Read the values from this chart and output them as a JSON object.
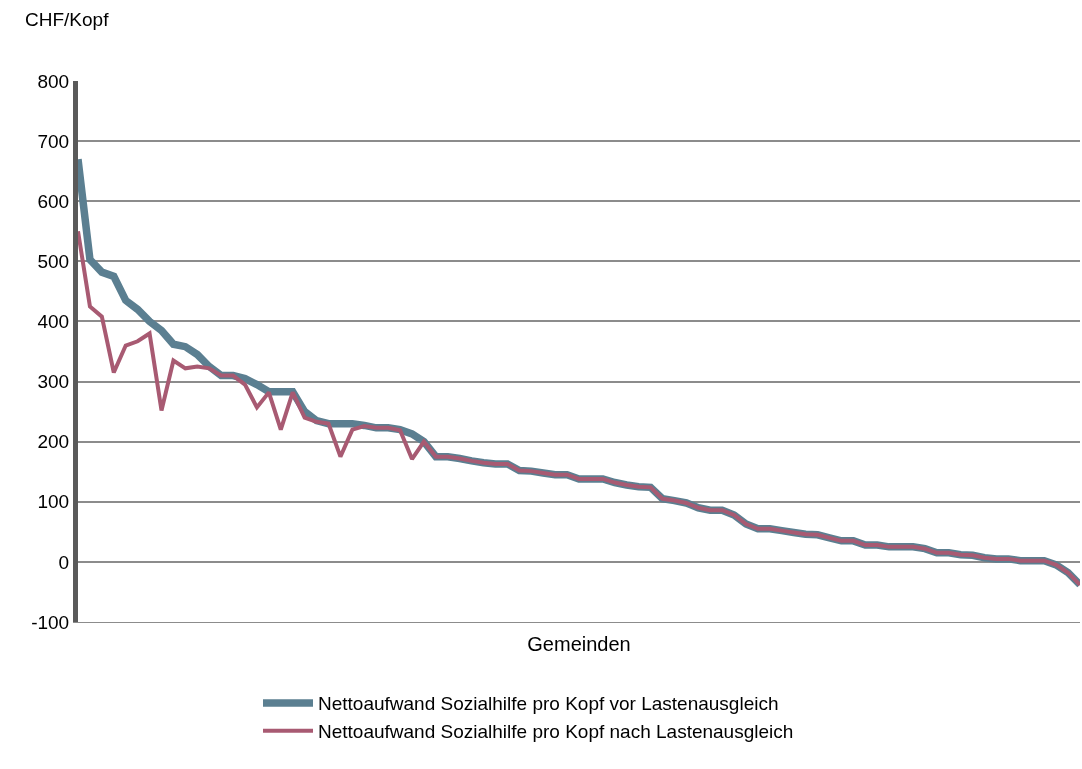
{
  "chart_data": {
    "type": "line",
    "xlabel": "Gemeinden",
    "ylabel": "CHF/Kopf",
    "categories": [
      null,
      null,
      null,
      null,
      null,
      null,
      null,
      null,
      null,
      null,
      null,
      null,
      null,
      null,
      null,
      null,
      null,
      null,
      null,
      null,
      null,
      null,
      null,
      null,
      null,
      null,
      null,
      null,
      null,
      null,
      null,
      null,
      null,
      null,
      null,
      null,
      null,
      null,
      null,
      null,
      null,
      null,
      null,
      null,
      null,
      null,
      null,
      null,
      null,
      null,
      null,
      null,
      null,
      null,
      null,
      null,
      null,
      null,
      null,
      null,
      null,
      null,
      null,
      null,
      null,
      null,
      null,
      null,
      null,
      null,
      null,
      null,
      null,
      null,
      null,
      null,
      null,
      null,
      null,
      null,
      null,
      null,
      null,
      null,
      null
    ],
    "series": [
      {
        "name": "Nettoaufwand Sozialhilfe pro Kopf vor Lastenausgleich",
        "color": "#5b7f91",
        "values": [
          670,
          503,
          482,
          475,
          435,
          420,
          400,
          385,
          362,
          358,
          345,
          325,
          310,
          310,
          305,
          295,
          283,
          283,
          283,
          250,
          235,
          230,
          230,
          230,
          227,
          223,
          223,
          220,
          213,
          200,
          175,
          175,
          172,
          168,
          165,
          163,
          163,
          152,
          151,
          148,
          145,
          145,
          138,
          138,
          138,
          132,
          128,
          125,
          124,
          105,
          102,
          98,
          90,
          86,
          86,
          78,
          63,
          55,
          55,
          52,
          49,
          46,
          45,
          40,
          35,
          35,
          28,
          28,
          25,
          25,
          25,
          22,
          15,
          15,
          12,
          11,
          7,
          5,
          5,
          2,
          2,
          2,
          -5,
          -18,
          -38
        ]
      },
      {
        "name": "Nettoaufwand Sozialhilfe pro Kopf nach Lastenausgleich",
        "color": "#a85a72",
        "values": [
          550,
          425,
          408,
          315,
          360,
          367,
          380,
          252,
          335,
          322,
          325,
          322,
          310,
          310,
          295,
          257,
          282,
          220,
          282,
          240,
          233,
          230,
          175,
          220,
          226,
          223,
          223,
          219,
          171,
          200,
          175,
          175,
          172,
          168,
          165,
          163,
          163,
          152,
          151,
          148,
          145,
          145,
          138,
          138,
          138,
          132,
          128,
          125,
          124,
          105,
          102,
          98,
          90,
          86,
          86,
          78,
          63,
          55,
          55,
          52,
          49,
          46,
          45,
          40,
          35,
          35,
          28,
          28,
          25,
          25,
          25,
          22,
          15,
          15,
          12,
          11,
          7,
          5,
          5,
          2,
          2,
          2,
          -5,
          -18,
          -38
        ]
      }
    ],
    "ylim": [
      -100,
      800
    ],
    "yticks": [
      -100,
      0,
      100,
      200,
      300,
      400,
      500,
      600,
      700,
      800
    ],
    "grid": "y",
    "legend": "bottom",
    "marker": "none",
    "line_style": "solid",
    "tick_labels": "y"
  }
}
